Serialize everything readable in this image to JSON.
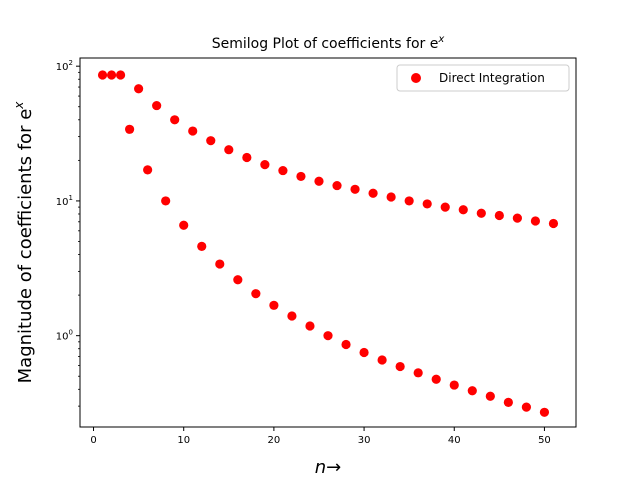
{
  "chart_data": {
    "type": "scatter",
    "title": "Semilog Plot of coefficients for e",
    "title_superscript": "x",
    "xlabel": "n",
    "xlabel_arrow": "→",
    "ylabel": "Magnitude of coefficients for e",
    "ylabel_superscript": "x",
    "yscale": "log",
    "xlim": [
      -1.5,
      53.5
    ],
    "ylim": [
      0.21,
      115
    ],
    "xticks": [
      0,
      10,
      20,
      30,
      40,
      50
    ],
    "yticks": [
      {
        "value": 1,
        "base": "10",
        "exp": "0"
      },
      {
        "value": 10,
        "base": "10",
        "exp": "1"
      },
      {
        "value": 100,
        "base": "10",
        "exp": "2"
      }
    ],
    "grid": false,
    "legend_position": "top-right",
    "marker_color": "#ff0000",
    "series": [
      {
        "name": "Direct Integration",
        "color": "#ff0000",
        "points": [
          {
            "x": 1,
            "y": 86
          },
          {
            "x": 2,
            "y": 86
          },
          {
            "x": 3,
            "y": 86
          },
          {
            "x": 4,
            "y": 34
          },
          {
            "x": 5,
            "y": 68
          },
          {
            "x": 6,
            "y": 17
          },
          {
            "x": 7,
            "y": 51
          },
          {
            "x": 8,
            "y": 10
          },
          {
            "x": 9,
            "y": 40
          },
          {
            "x": 10,
            "y": 6.6
          },
          {
            "x": 11,
            "y": 33
          },
          {
            "x": 12,
            "y": 4.6
          },
          {
            "x": 13,
            "y": 28
          },
          {
            "x": 14,
            "y": 3.4
          },
          {
            "x": 15,
            "y": 24
          },
          {
            "x": 16,
            "y": 2.6
          },
          {
            "x": 17,
            "y": 21
          },
          {
            "x": 18,
            "y": 2.05
          },
          {
            "x": 19,
            "y": 18.6
          },
          {
            "x": 20,
            "y": 1.68
          },
          {
            "x": 21,
            "y": 16.8
          },
          {
            "x": 22,
            "y": 1.4
          },
          {
            "x": 23,
            "y": 15.2
          },
          {
            "x": 24,
            "y": 1.18
          },
          {
            "x": 25,
            "y": 14
          },
          {
            "x": 26,
            "y": 1.0
          },
          {
            "x": 27,
            "y": 13
          },
          {
            "x": 28,
            "y": 0.86
          },
          {
            "x": 29,
            "y": 12.2
          },
          {
            "x": 30,
            "y": 0.75
          },
          {
            "x": 31,
            "y": 11.4
          },
          {
            "x": 32,
            "y": 0.66
          },
          {
            "x": 33,
            "y": 10.7
          },
          {
            "x": 34,
            "y": 0.59
          },
          {
            "x": 35,
            "y": 10.0
          },
          {
            "x": 36,
            "y": 0.53
          },
          {
            "x": 37,
            "y": 9.5
          },
          {
            "x": 38,
            "y": 0.475
          },
          {
            "x": 39,
            "y": 9.0
          },
          {
            "x": 40,
            "y": 0.43
          },
          {
            "x": 41,
            "y": 8.6
          },
          {
            "x": 42,
            "y": 0.39
          },
          {
            "x": 43,
            "y": 8.1
          },
          {
            "x": 44,
            "y": 0.355
          },
          {
            "x": 45,
            "y": 7.8
          },
          {
            "x": 46,
            "y": 0.32
          },
          {
            "x": 47,
            "y": 7.45
          },
          {
            "x": 48,
            "y": 0.295
          },
          {
            "x": 49,
            "y": 7.1
          },
          {
            "x": 50,
            "y": 0.27
          },
          {
            "x": 51,
            "y": 6.8
          }
        ]
      }
    ]
  }
}
